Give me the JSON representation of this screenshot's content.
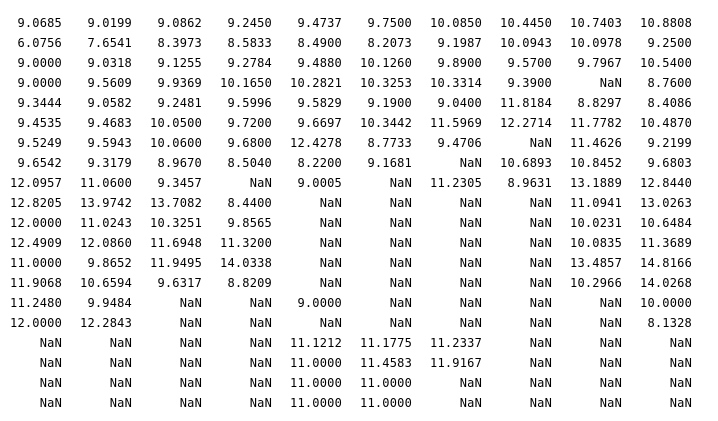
{
  "matrix": {
    "rows": [
      [
        "9.0685",
        "9.0199",
        "9.0862",
        "9.2450",
        "9.4737",
        "9.7500",
        "10.0850",
        "10.4450",
        "10.7403",
        "10.8808"
      ],
      [
        "6.0756",
        "7.6541",
        "8.3973",
        "8.5833",
        "8.4900",
        "8.2073",
        "9.1987",
        "10.0943",
        "10.0978",
        "9.2500"
      ],
      [
        "9.0000",
        "9.0318",
        "9.1255",
        "9.2784",
        "9.4880",
        "10.1260",
        "9.8900",
        "9.5700",
        "9.7967",
        "10.5400"
      ],
      [
        "9.0000",
        "9.5609",
        "9.9369",
        "10.1650",
        "10.2821",
        "10.3253",
        "10.3314",
        "9.3900",
        "NaN",
        "8.7600"
      ],
      [
        "9.3444",
        "9.0582",
        "9.2481",
        "9.5996",
        "9.5829",
        "9.1900",
        "9.0400",
        "11.8184",
        "8.8297",
        "8.4086"
      ],
      [
        "9.4535",
        "9.4683",
        "10.0500",
        "9.7200",
        "9.6697",
        "10.3442",
        "11.5969",
        "12.2714",
        "11.7782",
        "10.4870"
      ],
      [
        "9.5249",
        "9.5943",
        "10.0600",
        "9.6800",
        "12.4278",
        "8.7733",
        "9.4706",
        "NaN",
        "11.4626",
        "9.2199"
      ],
      [
        "9.6542",
        "9.3179",
        "8.9670",
        "8.5040",
        "8.2200",
        "9.1681",
        "NaN",
        "10.6893",
        "10.8452",
        "9.6803"
      ],
      [
        "12.0957",
        "11.0600",
        "9.3457",
        "NaN",
        "9.0005",
        "NaN",
        "11.2305",
        "8.9631",
        "13.1889",
        "12.8440"
      ],
      [
        "12.8205",
        "13.9742",
        "13.7082",
        "8.4400",
        "NaN",
        "NaN",
        "NaN",
        "NaN",
        "11.0941",
        "13.0263"
      ],
      [
        "12.0000",
        "11.0243",
        "10.3251",
        "9.8565",
        "NaN",
        "NaN",
        "NaN",
        "NaN",
        "10.0231",
        "10.6484"
      ],
      [
        "12.4909",
        "12.0860",
        "11.6948",
        "11.3200",
        "NaN",
        "NaN",
        "NaN",
        "NaN",
        "10.0835",
        "11.3689"
      ],
      [
        "11.0000",
        "9.8652",
        "11.9495",
        "14.0338",
        "NaN",
        "NaN",
        "NaN",
        "NaN",
        "13.4857",
        "14.8166"
      ],
      [
        "11.9068",
        "10.6594",
        "9.6317",
        "8.8209",
        "NaN",
        "NaN",
        "NaN",
        "NaN",
        "10.2966",
        "14.0268"
      ],
      [
        "11.2480",
        "9.9484",
        "NaN",
        "NaN",
        "9.0000",
        "NaN",
        "NaN",
        "NaN",
        "NaN",
        "10.0000"
      ],
      [
        "12.0000",
        "12.2843",
        "NaN",
        "NaN",
        "NaN",
        "NaN",
        "NaN",
        "NaN",
        "NaN",
        "8.1328"
      ],
      [
        "NaN",
        "NaN",
        "NaN",
        "NaN",
        "11.1212",
        "11.1775",
        "11.2337",
        "NaN",
        "NaN",
        "NaN"
      ],
      [
        "NaN",
        "NaN",
        "NaN",
        "NaN",
        "11.0000",
        "11.4583",
        "11.9167",
        "NaN",
        "NaN",
        "NaN"
      ],
      [
        "NaN",
        "NaN",
        "NaN",
        "NaN",
        "11.0000",
        "11.0000",
        "NaN",
        "NaN",
        "NaN",
        "NaN"
      ],
      [
        "NaN",
        "NaN",
        "NaN",
        "NaN",
        "11.0000",
        "11.0000",
        "NaN",
        "NaN",
        "NaN",
        "NaN"
      ]
    ]
  }
}
